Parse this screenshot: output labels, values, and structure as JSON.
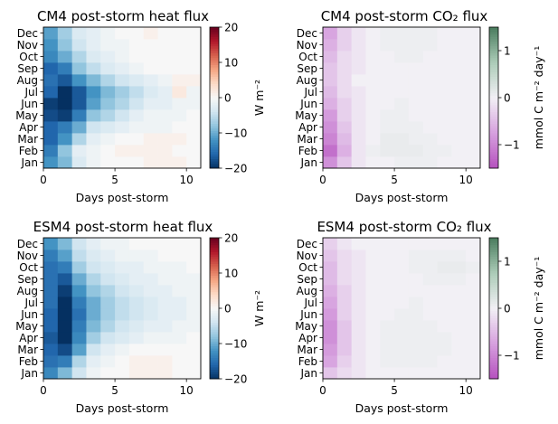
{
  "chart_data": [
    {
      "type": "heatmap",
      "title": "CM4 post-storm heat flux",
      "xlabel": "Days post-storm",
      "ylabel": "",
      "xlim": [
        0,
        11
      ],
      "x_ticks": [
        "0",
        "5",
        "10"
      ],
      "categories": [
        "Jan",
        "Feb",
        "Mar",
        "Apr",
        "May",
        "Jun",
        "Jul",
        "Aug",
        "Sep",
        "Oct",
        "Nov",
        "Dec"
      ],
      "colormap": "RdBu_r",
      "colorbar": {
        "label": "W m⁻²",
        "range": [
          -20,
          20
        ],
        "ticks": [
          "−20",
          "−10",
          "0",
          "10",
          "20"
        ]
      },
      "values": [
        [
          -12,
          -9,
          -3,
          -1,
          0,
          0,
          0,
          1,
          1,
          1,
          0
        ],
        [
          -14,
          -8,
          -2,
          -1,
          0,
          1,
          1,
          1,
          1,
          0,
          0
        ],
        [
          -16,
          -12,
          -6,
          -2,
          -1,
          0,
          0,
          1,
          1,
          1,
          0
        ],
        [
          -16,
          -14,
          -10,
          -4,
          -3,
          -2,
          -1,
          -1,
          -1,
          0,
          0
        ],
        [
          -18,
          -19,
          -14,
          -8,
          -6,
          -4,
          -2,
          -1,
          -1,
          -1,
          0
        ],
        [
          -19,
          -20,
          -17,
          -11,
          -8,
          -6,
          -4,
          -2,
          -2,
          -1,
          -1
        ],
        [
          -16,
          -20,
          -17,
          -12,
          -9,
          -7,
          -5,
          -3,
          -2,
          2,
          -1
        ],
        [
          -15,
          -17,
          -12,
          -9,
          -6,
          -4,
          -3,
          -2,
          -1,
          1,
          1
        ],
        [
          -16,
          -14,
          -8,
          -5,
          -3,
          -2,
          -1,
          0,
          0,
          0,
          0
        ],
        [
          -13,
          -10,
          -6,
          -3,
          -2,
          -1,
          0,
          0,
          0,
          0,
          0
        ],
        [
          -12,
          -8,
          -4,
          -2,
          -1,
          -1,
          0,
          0,
          0,
          0,
          0
        ],
        [
          -11,
          -7,
          -3,
          -2,
          -1,
          0,
          0,
          1,
          0,
          0,
          0
        ]
      ]
    },
    {
      "type": "heatmap",
      "title": "CM4 post-storm CO₂ flux",
      "xlabel": "Days post-storm",
      "ylabel": "",
      "xlim": [
        0,
        11
      ],
      "x_ticks": [
        "0",
        "5",
        "10"
      ],
      "categories": [
        "Jan",
        "Feb",
        "Mar",
        "Apr",
        "May",
        "Jun",
        "Jul",
        "Aug",
        "Sep",
        "Oct",
        "Nov",
        "Dec"
      ],
      "colormap": "PRGn",
      "colorbar": {
        "label": "mmol C m⁻² day⁻¹",
        "range": [
          -1.5,
          1.5
        ],
        "ticks": [
          "−1",
          "0",
          "1"
        ]
      },
      "values": [
        [
          -0.9,
          -0.4,
          -0.1,
          0,
          0,
          0.05,
          0.05,
          0.05,
          0,
          0,
          0
        ],
        [
          -1.2,
          -0.6,
          -0.1,
          0.05,
          0.1,
          0.1,
          0.1,
          0.05,
          0.05,
          0,
          0
        ],
        [
          -1.0,
          -0.5,
          -0.1,
          0,
          0.1,
          0.1,
          0.05,
          0.05,
          0,
          0,
          0
        ],
        [
          -0.9,
          -0.4,
          -0.1,
          0,
          0.05,
          0.05,
          0.05,
          0,
          0,
          0,
          0
        ],
        [
          -0.8,
          -0.3,
          -0.1,
          0,
          0.05,
          0.05,
          0,
          0,
          0,
          0,
          0
        ],
        [
          -0.6,
          -0.3,
          -0.1,
          0,
          0,
          0.05,
          0,
          0,
          0,
          0,
          0
        ],
        [
          -0.5,
          -0.2,
          -0.1,
          0,
          0,
          0,
          0,
          0,
          0,
          0,
          0
        ],
        [
          -0.4,
          -0.2,
          0,
          0,
          0,
          0,
          0,
          0,
          0,
          0,
          0
        ],
        [
          -0.4,
          -0.2,
          -0.1,
          0,
          0,
          0,
          0,
          0,
          0,
          0,
          0
        ],
        [
          -0.5,
          -0.2,
          -0.1,
          0,
          0,
          0.05,
          0.05,
          0,
          0,
          0,
          0
        ],
        [
          -0.6,
          -0.3,
          -0.1,
          0,
          0.05,
          0.05,
          0.05,
          0.05,
          0,
          0,
          0
        ],
        [
          -0.7,
          -0.3,
          -0.1,
          0,
          0.05,
          0.05,
          0.05,
          0.05,
          0,
          0,
          0
        ]
      ]
    },
    {
      "type": "heatmap",
      "title": "ESM4 post-storm heat flux",
      "xlabel": "Days post-storm",
      "ylabel": "",
      "xlim": [
        0,
        11
      ],
      "x_ticks": [
        "0",
        "5",
        "10"
      ],
      "categories": [
        "Jan",
        "Feb",
        "Mar",
        "Apr",
        "May",
        "Jun",
        "Jul",
        "Aug",
        "Sep",
        "Oct",
        "Nov",
        "Dec"
      ],
      "colormap": "RdBu_r",
      "colorbar": {
        "label": "W m⁻²",
        "range": [
          -20,
          20
        ],
        "ticks": [
          "−20",
          "−10",
          "0",
          "10",
          "20"
        ]
      },
      "values": [
        [
          -13,
          -9,
          -4,
          -1,
          0,
          0,
          1,
          1,
          1,
          0,
          0
        ],
        [
          -15,
          -14,
          -6,
          -2,
          -1,
          0,
          1,
          1,
          1,
          0,
          0
        ],
        [
          -16,
          -18,
          -11,
          -4,
          -2,
          -1,
          0,
          0,
          0,
          0,
          0
        ],
        [
          -17,
          -20,
          -13,
          -7,
          -4,
          -3,
          -2,
          -1,
          -1,
          -1,
          0
        ],
        [
          -16,
          -20,
          -14,
          -9,
          -6,
          -4,
          -3,
          -2,
          -2,
          -1,
          -1
        ],
        [
          -16,
          -20,
          -15,
          -10,
          -7,
          -5,
          -4,
          -3,
          -2,
          -2,
          -1
        ],
        [
          -15,
          -20,
          -14,
          -10,
          -7,
          -5,
          -4,
          -3,
          -2,
          -2,
          -1
        ],
        [
          -15,
          -19,
          -12,
          -8,
          -6,
          -4,
          -3,
          -2,
          -2,
          -1,
          -1
        ],
        [
          -15,
          -17,
          -10,
          -6,
          -4,
          -3,
          -2,
          -2,
          -1,
          -1,
          -1
        ],
        [
          -15,
          -14,
          -7,
          -4,
          -3,
          -2,
          -2,
          -1,
          -1,
          -1,
          0
        ],
        [
          -14,
          -11,
          -5,
          -3,
          -2,
          -1,
          -1,
          -1,
          0,
          0,
          0
        ],
        [
          -12,
          -9,
          -4,
          -2,
          -1,
          -1,
          0,
          0,
          0,
          0,
          0
        ]
      ]
    },
    {
      "type": "heatmap",
      "title": "ESM4 post-storm CO₂ flux",
      "xlabel": "Days post-storm",
      "ylabel": "",
      "xlim": [
        0,
        11
      ],
      "x_ticks": [
        "0",
        "5",
        "10"
      ],
      "categories": [
        "Jan",
        "Feb",
        "Mar",
        "Apr",
        "May",
        "Jun",
        "Jul",
        "Aug",
        "Sep",
        "Oct",
        "Nov",
        "Dec"
      ],
      "colormap": "PRGn",
      "colorbar": {
        "label": "mmol C m⁻² day⁻¹",
        "range": [
          -1.5,
          1.5
        ],
        "ticks": [
          "−1",
          "0",
          "1"
        ]
      },
      "values": [
        [
          -0.4,
          -0.2,
          -0.1,
          0,
          0,
          0,
          0,
          0,
          0,
          0,
          0
        ],
        [
          -0.7,
          -0.3,
          -0.1,
          0,
          0.05,
          0.05,
          0.05,
          0.05,
          0,
          0,
          0
        ],
        [
          -0.8,
          -0.4,
          -0.1,
          0,
          0.05,
          0.05,
          0.05,
          0.05,
          0.05,
          0,
          0
        ],
        [
          -0.9,
          -0.4,
          -0.1,
          0,
          0.05,
          0.05,
          0.05,
          0.05,
          0.05,
          0,
          0
        ],
        [
          -0.9,
          -0.4,
          -0.1,
          0,
          0.05,
          0.05,
          0.05,
          0.05,
          0,
          0,
          0
        ],
        [
          -0.8,
          -0.3,
          -0.1,
          0,
          0,
          0.05,
          0.05,
          0,
          0,
          0,
          0
        ],
        [
          -0.7,
          -0.3,
          -0.1,
          0,
          0,
          0,
          0.05,
          0,
          0,
          0,
          0
        ],
        [
          -0.6,
          -0.3,
          -0.1,
          0,
          0,
          0,
          0,
          0,
          0,
          0,
          0
        ],
        [
          -0.5,
          -0.2,
          -0.1,
          0,
          0,
          0,
          0,
          0.05,
          0.05,
          0.05,
          0
        ],
        [
          -0.5,
          -0.2,
          -0.1,
          0,
          0,
          0,
          0.05,
          0.05,
          0.1,
          0.1,
          0.05
        ],
        [
          -0.4,
          -0.2,
          -0.1,
          0,
          0,
          0,
          0.05,
          0.05,
          0.05,
          0.05,
          0
        ],
        [
          -0.3,
          -0.1,
          0,
          0,
          0,
          0,
          0,
          0,
          0,
          0,
          0
        ]
      ]
    }
  ]
}
